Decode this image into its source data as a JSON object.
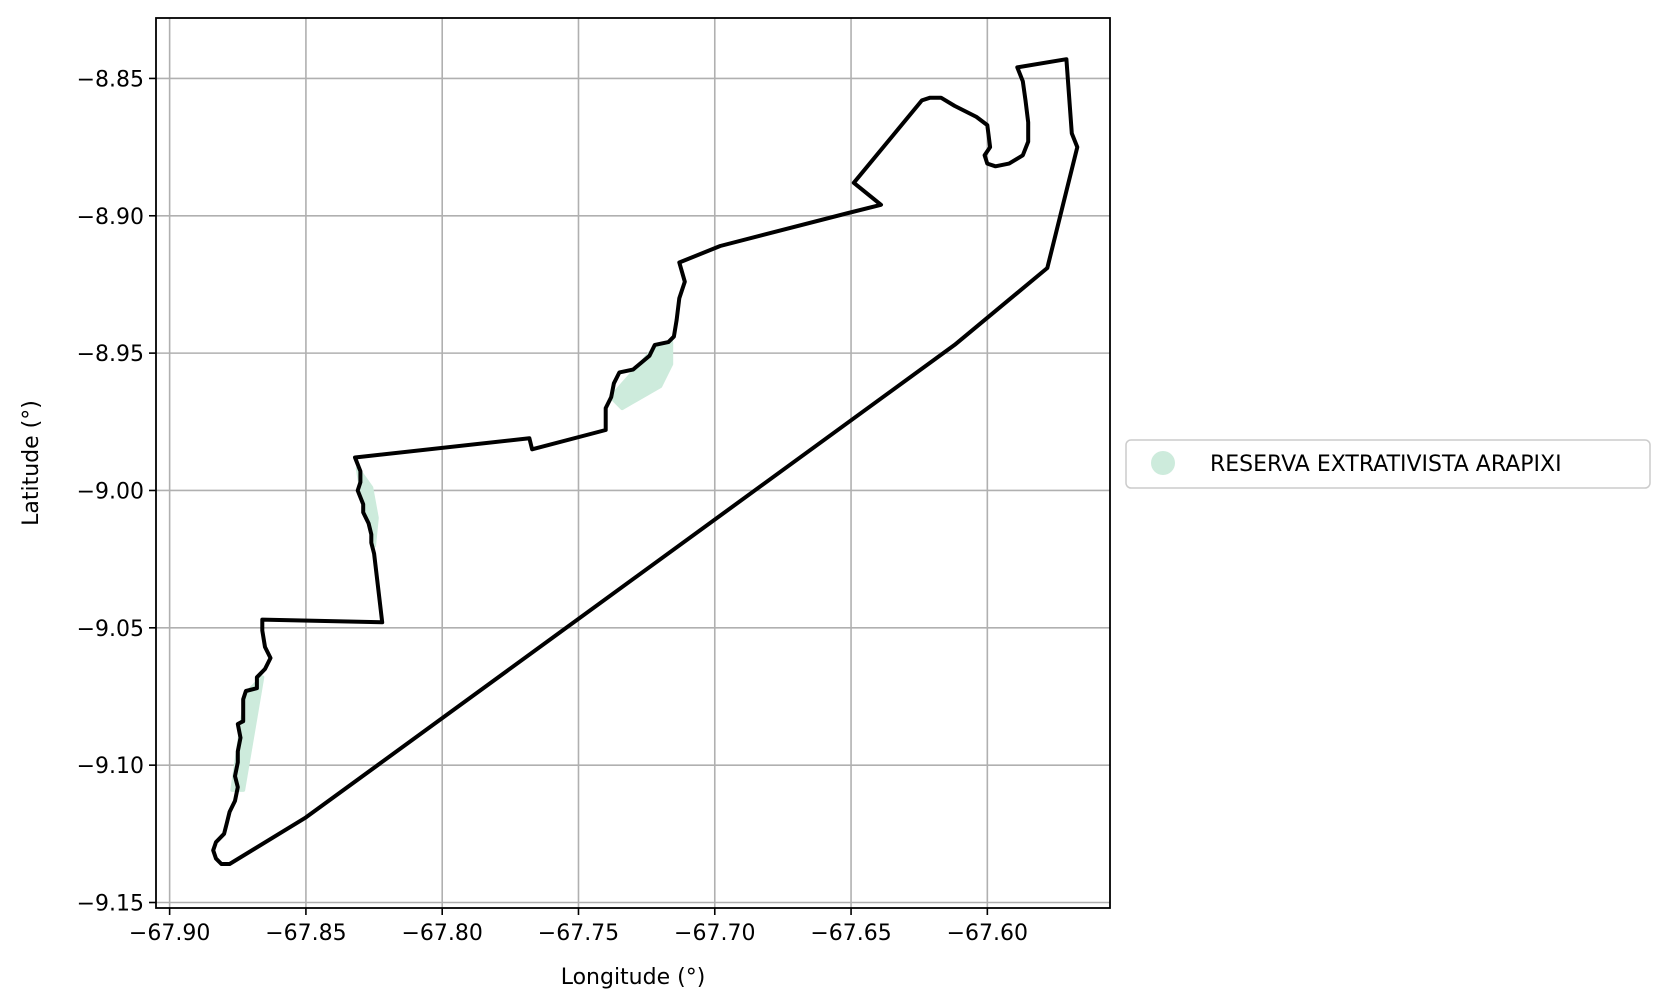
{
  "map": {
    "xlabel": "Longitude (°)",
    "ylabel": "Latitude (°)",
    "xlim": [
      -67.905,
      -67.555
    ],
    "ylim": [
      -9.152,
      -8.828
    ],
    "x_ticks": [
      -67.9,
      -67.85,
      -67.8,
      -67.75,
      -67.7,
      -67.65,
      -67.6
    ],
    "y_ticks": [
      -8.85,
      -8.9,
      -8.95,
      -9.0,
      -9.05,
      -9.1,
      -9.15
    ],
    "x_tick_labels": [
      "−67.90",
      "−67.85",
      "−67.80",
      "−67.75",
      "−67.70",
      "−67.65",
      "−67.60"
    ],
    "y_tick_labels": [
      "−8.85",
      "−8.90",
      "−8.95",
      "−9.00",
      "−9.05",
      "−9.10",
      "−9.15"
    ],
    "grid": true,
    "colors": {
      "boundary": "#000000",
      "fill": "#cdebdc",
      "grid": "#b0b0b0"
    },
    "legend": {
      "placement": "right",
      "label": "RESERVA EXTRATIVISTA ARAPIXI"
    },
    "boundary_outline": [
      [
        -67.571,
        -8.843
      ],
      [
        -67.589,
        -8.846
      ],
      [
        -67.587,
        -8.851
      ],
      [
        -67.586,
        -8.858
      ],
      [
        -67.585,
        -8.866
      ],
      [
        -67.585,
        -8.873
      ],
      [
        -67.587,
        -8.878
      ],
      [
        -67.592,
        -8.881
      ],
      [
        -67.597,
        -8.882
      ],
      [
        -67.6,
        -8.881
      ],
      [
        -67.601,
        -8.878
      ],
      [
        -67.599,
        -8.875
      ],
      [
        -67.6,
        -8.867
      ],
      [
        -67.604,
        -8.864
      ],
      [
        -67.612,
        -8.86
      ],
      [
        -67.617,
        -8.857
      ],
      [
        -67.621,
        -8.857
      ],
      [
        -67.624,
        -8.858
      ],
      [
        -67.649,
        -8.888
      ],
      [
        -67.639,
        -8.896
      ],
      [
        -67.651,
        -8.899
      ],
      [
        -67.698,
        -8.911
      ],
      [
        -67.713,
        -8.917
      ],
      [
        -67.711,
        -8.924
      ],
      [
        -67.713,
        -8.93
      ],
      [
        -67.714,
        -8.938
      ],
      [
        -67.715,
        -8.944
      ],
      [
        -67.717,
        -8.946
      ],
      [
        -67.722,
        -8.947
      ],
      [
        -67.724,
        -8.951
      ],
      [
        -67.73,
        -8.956
      ],
      [
        -67.735,
        -8.957
      ],
      [
        -67.737,
        -8.961
      ],
      [
        -67.738,
        -8.966
      ],
      [
        -67.74,
        -8.97
      ],
      [
        -67.74,
        -8.975
      ],
      [
        -67.74,
        -8.978
      ],
      [
        -67.767,
        -8.985
      ],
      [
        -67.768,
        -8.981
      ],
      [
        -67.832,
        -8.988
      ],
      [
        -67.83,
        -8.993
      ],
      [
        -67.83,
        -8.997
      ],
      [
        -67.831,
        -9.0
      ],
      [
        -67.829,
        -9.005
      ],
      [
        -67.829,
        -9.008
      ],
      [
        -67.827,
        -9.012
      ],
      [
        -67.826,
        -9.016
      ],
      [
        -67.826,
        -9.019
      ],
      [
        -67.825,
        -9.023
      ],
      [
        -67.822,
        -9.048
      ],
      [
        -67.866,
        -9.047
      ],
      [
        -67.866,
        -9.051
      ],
      [
        -67.865,
        -9.057
      ],
      [
        -67.863,
        -9.061
      ],
      [
        -67.865,
        -9.065
      ],
      [
        -67.868,
        -9.068
      ],
      [
        -67.868,
        -9.072
      ],
      [
        -67.872,
        -9.073
      ],
      [
        -67.873,
        -9.076
      ],
      [
        -67.873,
        -9.08
      ],
      [
        -67.873,
        -9.084
      ],
      [
        -67.875,
        -9.085
      ],
      [
        -67.874,
        -9.09
      ],
      [
        -67.875,
        -9.095
      ],
      [
        -67.875,
        -9.099
      ],
      [
        -67.876,
        -9.104
      ],
      [
        -67.875,
        -9.108
      ],
      [
        -67.876,
        -9.113
      ],
      [
        -67.878,
        -9.117
      ],
      [
        -67.879,
        -9.121
      ],
      [
        -67.88,
        -9.125
      ],
      [
        -67.883,
        -9.128
      ],
      [
        -67.884,
        -9.131
      ],
      [
        -67.883,
        -9.134
      ],
      [
        -67.881,
        -9.136
      ],
      [
        -67.878,
        -9.136
      ],
      [
        -67.85,
        -9.119
      ],
      [
        -67.612,
        -8.947
      ],
      [
        -67.578,
        -8.919
      ],
      [
        -67.567,
        -8.875
      ],
      [
        -67.569,
        -8.87
      ],
      [
        -67.571,
        -8.843
      ]
    ],
    "fill_patches": [
      [
        [
          -67.877,
          -9.109
        ],
        [
          -67.873,
          -9.109
        ],
        [
          -67.866,
          -9.068
        ],
        [
          -67.872,
          -9.074
        ],
        [
          -67.875,
          -9.095
        ]
      ],
      [
        [
          -67.831,
          -8.992
        ],
        [
          -67.826,
          -8.999
        ],
        [
          -67.824,
          -9.01
        ],
        [
          -67.825,
          -9.02
        ],
        [
          -67.829,
          -9.004
        ]
      ],
      [
        [
          -67.738,
          -8.966
        ],
        [
          -67.734,
          -8.97
        ],
        [
          -67.727,
          -8.966
        ],
        [
          -67.72,
          -8.962
        ],
        [
          -67.716,
          -8.954
        ],
        [
          -67.716,
          -8.946
        ],
        [
          -67.722,
          -8.948
        ],
        [
          -67.73,
          -8.957
        ]
      ]
    ]
  }
}
